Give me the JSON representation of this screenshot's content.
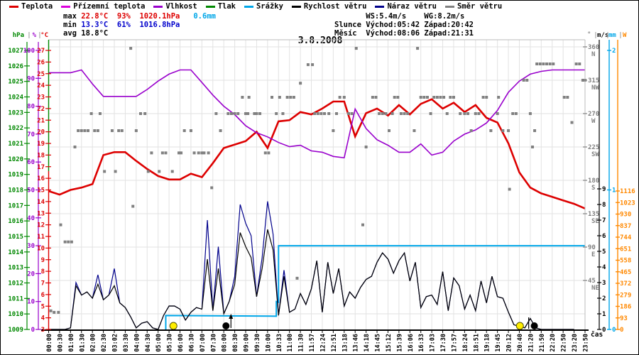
{
  "title": "3.8.2008",
  "xaxis_caption": "čas",
  "legend": {
    "items": [
      {
        "label": "Teplota",
        "color": "#dd0000"
      },
      {
        "label": "Přízemní teplota",
        "color": "#dd00dd"
      },
      {
        "label": "Vlhkost",
        "color": "#9900cc"
      },
      {
        "label": "Tlak",
        "color": "#008800"
      },
      {
        "label": "Srážky",
        "color": "#00a6e8"
      },
      {
        "label": "Rychlost větru",
        "color": "#000000"
      },
      {
        "label": "Náraz větru",
        "color": "#00008b"
      },
      {
        "label": "Směr větru",
        "color": "#808080"
      }
    ]
  },
  "stats": {
    "left_rows": [
      {
        "label": "max",
        "parts": [
          {
            "text": " 22.8°C",
            "cls": "v-red"
          },
          {
            "text": "  93%",
            "cls": "v-red"
          },
          {
            "text": "  1020.1hPa",
            "cls": "v-red"
          },
          {
            "text": "   0.6mm",
            "cls": "v-cyan"
          }
        ]
      },
      {
        "label": "min",
        "parts": [
          {
            "text": " 13.3°C",
            "cls": "v-blue"
          },
          {
            "text": "  61%",
            "cls": "v-blue"
          },
          {
            "text": "  1016.8hPa",
            "cls": "v-blue"
          }
        ]
      },
      {
        "label": "avg",
        "parts": [
          {
            "text": " 18.8°C",
            "cls": "v-black"
          }
        ]
      }
    ],
    "right_rows": [
      "       WS:5.4m/s    WG:8.2m/s",
      "Slunce Východ:05:42 Západ:20:42",
      "Měsíc  Východ:08:06 Západ:21:31"
    ]
  },
  "chart_data": {
    "type": "line",
    "x_labels": [
      "00:00",
      "00:30",
      "01:00",
      "01:30",
      "02:00",
      "02:30",
      "03:02",
      "03:30",
      "04:00",
      "04:30",
      "05:00",
      "05:30",
      "06:00",
      "06:30",
      "07:00",
      "07:30",
      "08:00",
      "08:30",
      "09:00",
      "09:30",
      "10:00",
      "10:33",
      "11:00",
      "11:30",
      "11:57",
      "12:24",
      "12:51",
      "13:18",
      "13:46",
      "14:18",
      "14:45",
      "15:12",
      "15:39",
      "16:06",
      "16:33",
      "17:03",
      "17:30",
      "17:57",
      "18:24",
      "18:51",
      "19:18",
      "19:45",
      "20:12",
      "20:40",
      "21:20",
      "21:50",
      "22:20",
      "22:50",
      "23:20",
      "23:50"
    ],
    "axes": {
      "hpa": {
        "label": "hPa",
        "color": "#008800",
        "min": 1009,
        "max": 1027,
        "step": 1
      },
      "percent": {
        "label": "%",
        "color": "#9900cc",
        "min": 0,
        "max": 100,
        "step": 10
      },
      "degC": {
        "label": "°C",
        "color": "#dd0000",
        "min": 3,
        "max": 27,
        "step": 1
      },
      "ms": {
        "label": "m/s",
        "color": "#000000",
        "min": 0,
        "max": 9,
        "step": 1
      },
      "mm": {
        "label": "mm",
        "color": "#00a6e8",
        "min": 0,
        "max": 2,
        "step": 1
      },
      "watts": {
        "label": "W",
        "color": "#ff8800",
        "min": 0,
        "max": 1116,
        "step": 93
      },
      "deg": {
        "label": "°",
        "color": "#808080",
        "ticks": [
          [
            45,
            "NE"
          ],
          [
            90,
            "E"
          ],
          [
            135,
            "SE"
          ],
          [
            180,
            "S"
          ],
          [
            225,
            "SW"
          ],
          [
            270,
            "W"
          ],
          [
            315,
            "NW"
          ],
          [
            360,
            "N"
          ]
        ]
      }
    },
    "series": [
      {
        "name": "Teplota",
        "axis": "degC",
        "unit": "°C",
        "color": "#dd0000",
        "width": 2.6,
        "per_tick": 1,
        "values": [
          14.9,
          14.6,
          15.0,
          15.2,
          15.5,
          18.0,
          18.25,
          18.25,
          17.5,
          16.8,
          16.2,
          15.9,
          15.9,
          16.4,
          16.1,
          17.3,
          18.6,
          18.9,
          19.2,
          20.0,
          18.6,
          20.9,
          21.0,
          21.7,
          21.5,
          22.0,
          22.6,
          22.6,
          19.6,
          21.6,
          22.0,
          21.4,
          22.3,
          21.5,
          22.4,
          22.8,
          22.0,
          22.5,
          21.7,
          22.3,
          21.2,
          20.8,
          19.0,
          16.5,
          15.2,
          14.7,
          14.4,
          14.1,
          13.8,
          13.4
        ]
      },
      {
        "name": "Vlhkost",
        "axis": "percent",
        "unit": "%",
        "color": "#9900cc",
        "width": 1.6,
        "per_tick": 1,
        "values": [
          92,
          92,
          92,
          93,
          88,
          83.5,
          83.5,
          83.5,
          83.5,
          86,
          89,
          91.5,
          93,
          93,
          88.5,
          84,
          80,
          77,
          73,
          70.5,
          69,
          67,
          65.5,
          66,
          64,
          63.5,
          62,
          61.5,
          79,
          72,
          68,
          66,
          63.5,
          63.5,
          66.5,
          62.5,
          63.5,
          67.5,
          70,
          71.5,
          74,
          78.5,
          85,
          89,
          91.5,
          92.5,
          93,
          93,
          93,
          93
        ]
      },
      {
        "name": "Náraz větru",
        "axis": "ms",
        "unit": "m/s",
        "color": "#00008b",
        "width": 1.2,
        "per_tick": 2,
        "values": [
          0,
          0,
          0,
          0,
          0.1,
          3.0,
          2.2,
          2.4,
          2.0,
          3.5,
          1.9,
          2.2,
          3.9,
          1.7,
          1.4,
          0.8,
          0.1,
          0.4,
          0.5,
          0.1,
          0,
          0.9,
          1.5,
          1.5,
          1.3,
          0.6,
          1.1,
          1.4,
          1.3,
          7.0,
          1.2,
          5.3,
          1.0,
          1.8,
          3.4,
          8.0,
          6.8,
          6.0,
          2.1,
          4.6,
          8.2,
          6.1,
          0.9,
          3.8,
          1.1,
          1.3,
          2.3,
          1.6,
          2.6,
          4.4,
          1.1,
          4.3,
          2.3,
          3.9,
          1.5,
          2.4,
          2.0,
          2.7,
          3.2,
          3.4,
          4.3,
          4.9,
          4.5,
          3.6,
          4.4,
          4.9,
          3.1,
          4.3,
          1.4,
          2.1,
          2.2,
          1.6,
          3.7,
          1.2,
          3.3,
          2.8,
          1.3,
          2.2,
          1.2,
          3.1,
          1.7,
          3.4,
          2.1,
          2.0,
          1.1,
          0.3,
          0.2,
          0.1,
          0.7,
          0.1,
          0,
          0,
          0,
          0,
          0,
          0,
          0
        ]
      },
      {
        "name": "Rychlost větru",
        "axis": "ms",
        "unit": "m/s",
        "color": "#000000",
        "width": 1.2,
        "per_tick": 2,
        "values": [
          0,
          0,
          0,
          0,
          0.1,
          2.8,
          2.2,
          2.4,
          2.0,
          2.9,
          1.9,
          2.2,
          2.8,
          1.7,
          1.4,
          0.8,
          0.1,
          0.4,
          0.5,
          0.1,
          0,
          0.9,
          1.5,
          1.5,
          1.3,
          0.6,
          1.1,
          1.4,
          1.3,
          4.5,
          1.2,
          3.9,
          1.0,
          1.8,
          2.9,
          6.2,
          5.3,
          4.6,
          2.1,
          3.9,
          6.4,
          5.1,
          0.9,
          3.4,
          1.1,
          1.3,
          2.3,
          1.6,
          2.6,
          4.4,
          1.1,
          4.3,
          2.3,
          3.9,
          1.5,
          2.4,
          2.0,
          2.7,
          3.2,
          3.4,
          4.3,
          4.9,
          4.5,
          3.6,
          4.4,
          4.9,
          3.1,
          4.3,
          1.4,
          2.1,
          2.2,
          1.6,
          3.7,
          1.2,
          3.3,
          2.8,
          1.3,
          2.2,
          1.2,
          3.1,
          1.7,
          3.4,
          2.1,
          2.0,
          1.1,
          0.3,
          0.2,
          0.1,
          0.7,
          0.1,
          0,
          0,
          0,
          0,
          0,
          0,
          0
        ]
      }
    ],
    "precipitation": {
      "name": "Srážky",
      "axis": "mm",
      "unit": "mm",
      "color": "#00a6e8",
      "width": 2,
      "steps": [
        [
          0,
          0
        ],
        [
          10.7,
          0.1
        ],
        [
          20.8,
          0.2
        ],
        [
          21.0,
          0.6
        ]
      ],
      "total_mm": 0.6
    },
    "wind_direction": {
      "name": "Směr větru",
      "axis": "deg",
      "color": "#808080",
      "size": 4,
      "points": [
        [
          0.2,
          4
        ],
        [
          0.5,
          2
        ],
        [
          0.9,
          2
        ],
        [
          1.1,
          120
        ],
        [
          1.5,
          97
        ],
        [
          1.8,
          97
        ],
        [
          2.1,
          97
        ],
        [
          2.4,
          225
        ],
        [
          2.7,
          247
        ],
        [
          3.0,
          247
        ],
        [
          3.3,
          247
        ],
        [
          3.6,
          247
        ],
        [
          3.9,
          270
        ],
        [
          4.2,
          247
        ],
        [
          4.5,
          247
        ],
        [
          4.7,
          270
        ],
        [
          5.1,
          192
        ],
        [
          5.8,
          247
        ],
        [
          6.1,
          192
        ],
        [
          6.4,
          247
        ],
        [
          6.7,
          247
        ],
        [
          7.5,
          358
        ],
        [
          7.7,
          145
        ],
        [
          8.0,
          247
        ],
        [
          8.4,
          270
        ],
        [
          8.8,
          270
        ],
        [
          9.1,
          192
        ],
        [
          9.4,
          217
        ],
        [
          10.1,
          192
        ],
        [
          10.4,
          217
        ],
        [
          10.7,
          217
        ],
        [
          11.3,
          192
        ],
        [
          11.9,
          217
        ],
        [
          12.1,
          217
        ],
        [
          12.4,
          247
        ],
        [
          13.0,
          247
        ],
        [
          13.3,
          217
        ],
        [
          13.7,
          217
        ],
        [
          14.0,
          217
        ],
        [
          14.2,
          217
        ],
        [
          14.6,
          217
        ],
        [
          14.9,
          170
        ],
        [
          15.3,
          270
        ],
        [
          15.7,
          247
        ],
        [
          16.4,
          270
        ],
        [
          16.7,
          270
        ],
        [
          17.0,
          270
        ],
        [
          17.3,
          270
        ],
        [
          17.7,
          292
        ],
        [
          18.0,
          270
        ],
        [
          18.2,
          270
        ],
        [
          18.3,
          292
        ],
        [
          18.8,
          270
        ],
        [
          19.0,
          270
        ],
        [
          19.3,
          270
        ],
        [
          19.8,
          217
        ],
        [
          20.1,
          217
        ],
        [
          20.4,
          292
        ],
        [
          20.8,
          270
        ],
        [
          21.1,
          292
        ],
        [
          21.4,
          270
        ],
        [
          21.8,
          292
        ],
        [
          22.1,
          292
        ],
        [
          22.4,
          292
        ],
        [
          22.7,
          48
        ],
        [
          23.0,
          311
        ],
        [
          23.7,
          336
        ],
        [
          24.1,
          336
        ],
        [
          24.3,
          270
        ],
        [
          24.6,
          270
        ],
        [
          24.9,
          270
        ],
        [
          25.2,
          270
        ],
        [
          25.6,
          270
        ],
        [
          26.0,
          247
        ],
        [
          26.3,
          270
        ],
        [
          26.6,
          292
        ],
        [
          27.0,
          292
        ],
        [
          27.4,
          270
        ],
        [
          27.7,
          270
        ],
        [
          28.1,
          358
        ],
        [
          28.7,
          120
        ],
        [
          29.0,
          225
        ],
        [
          29.6,
          292
        ],
        [
          29.9,
          292
        ],
        [
          30.2,
          270
        ],
        [
          30.5,
          270
        ],
        [
          30.8,
          270
        ],
        [
          31.1,
          247
        ],
        [
          31.4,
          270
        ],
        [
          31.6,
          292
        ],
        [
          31.9,
          292
        ],
        [
          32.2,
          270
        ],
        [
          32.5,
          270
        ],
        [
          32.8,
          270
        ],
        [
          33.4,
          247
        ],
        [
          33.7,
          358
        ],
        [
          34.0,
          292
        ],
        [
          34.3,
          292
        ],
        [
          34.6,
          292
        ],
        [
          34.9,
          270
        ],
        [
          35.2,
          292
        ],
        [
          35.5,
          292
        ],
        [
          35.8,
          292
        ],
        [
          36.1,
          292
        ],
        [
          36.4,
          270
        ],
        [
          36.7,
          292
        ],
        [
          37.0,
          292
        ],
        [
          37.6,
          270
        ],
        [
          38.0,
          270
        ],
        [
          38.3,
          270
        ],
        [
          38.6,
          247
        ],
        [
          39.0,
          270
        ],
        [
          39.3,
          270
        ],
        [
          39.7,
          292
        ],
        [
          40.0,
          292
        ],
        [
          40.4,
          247
        ],
        [
          41.0,
          270
        ],
        [
          41.1,
          292
        ],
        [
          41.5,
          247
        ],
        [
          42.0,
          247
        ],
        [
          42.1,
          168
        ],
        [
          42.4,
          270
        ],
        [
          42.7,
          270
        ],
        [
          43.4,
          315
        ],
        [
          43.7,
          315
        ],
        [
          44.0,
          270
        ],
        [
          44.2,
          225
        ],
        [
          44.4,
          247
        ],
        [
          44.6,
          337
        ],
        [
          44.9,
          337
        ],
        [
          45.2,
          337
        ],
        [
          45.5,
          337
        ],
        [
          45.8,
          337
        ],
        [
          46.1,
          337
        ],
        [
          47.1,
          292
        ],
        [
          47.4,
          292
        ],
        [
          47.8,
          258
        ],
        [
          48.2,
          337
        ],
        [
          48.5,
          337
        ],
        [
          48.8,
          315
        ],
        [
          49.0,
          315
        ]
      ]
    },
    "markers": {
      "sun": [
        {
          "x": 11.4,
          "event": "sunrise",
          "time": "05:42"
        },
        {
          "x": 43.05,
          "event": "sunset",
          "time": "20:42"
        }
      ],
      "moon": [
        {
          "x": 16.2,
          "event": "moonrise",
          "time": "08:06"
        },
        {
          "x": 44.37,
          "event": "moonset",
          "time": "21:31"
        }
      ]
    },
    "grid": {
      "color": "#e2e2e2",
      "vertical_every_tick": true,
      "horizontal_every_deg": 45
    }
  }
}
